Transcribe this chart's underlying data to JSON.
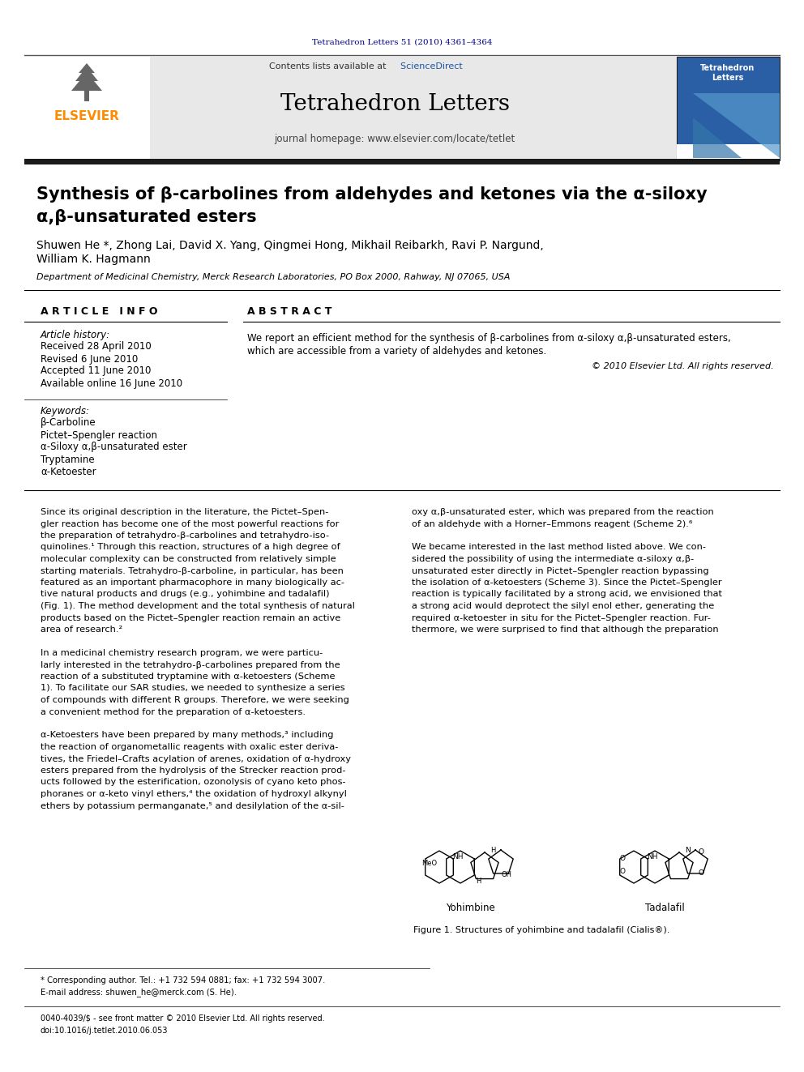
{
  "page_width": 9.92,
  "page_height": 13.23,
  "background_color": "#ffffff",
  "top_citation": "Tetrahedron Letters 51 (2010) 4361–4364",
  "top_citation_color": "#00008B",
  "journal_title": "Tetrahedron Letters",
  "journal_homepage": "journal homepage: www.elsevier.com/locate/tetlet",
  "contents_text": "Contents lists available at ",
  "science_direct": "ScienceDirect",
  "elsevier_text": "ELSEVIER",
  "elsevier_color": "#FF8C00",
  "header_bg": "#E8E8E8",
  "article_title_line1": "Synthesis of β-carbolines from aldehydes and ketones via the α-siloxy",
  "article_title_line2": "α,β-unsaturated esters",
  "authors": "Shuwen He *, Zhong Lai, David X. Yang, Qingmei Hong, Mikhail Reibarkh, Ravi P. Nargund,",
  "authors2": "William K. Hagmann",
  "affiliation": "Department of Medicinal Chemistry, Merck Research Laboratories, PO Box 2000, Rahway, NJ 07065, USA",
  "article_info_header": "A R T I C L E   I N F O",
  "abstract_header": "A B S T R A C T",
  "article_history_label": "Article history:",
  "received": "Received 28 April 2010",
  "revised": "Revised 6 June 2010",
  "accepted": "Accepted 11 June 2010",
  "available": "Available online 16 June 2010",
  "keywords_label": "Keywords:",
  "kw1": "β-Carboline",
  "kw2": "Pictet–Spengler reaction",
  "kw3": "α-Siloxy α,β-unsaturated ester",
  "kw4": "Tryptamine",
  "kw5": "α-Ketoester",
  "abstract_text_line1": "We report an efficient method for the synthesis of β-carbolines from α-siloxy α,β-unsaturated esters,",
  "abstract_text_line2": "which are accessible from a variety of aldehydes and ketones.",
  "copyright": "© 2010 Elsevier Ltd. All rights reserved.",
  "fig1_caption": "Figure 1. Structures of yohimbine and tadalafil (Cialis®).",
  "footnote1": "* Corresponding author. Tel.: +1 732 594 0881; fax: +1 732 594 3007.",
  "footnote2": "E-mail address: shuwen_he@merck.com (S. He).",
  "footnote3": "0040-4039/$ - see front matter © 2010 Elsevier Ltd. All rights reserved.",
  "footnote4": "doi:10.1016/j.tetlet.2010.06.053",
  "dark_bar_color": "#1a1a1a",
  "col1_lines": [
    "Since its original description in the literature, the Pictet–Spen-",
    "gler reaction has become one of the most powerful reactions for",
    "the preparation of tetrahydro-β-carbolines and tetrahydro-iso-",
    "quinolines.¹ Through this reaction, structures of a high degree of",
    "molecular complexity can be constructed from relatively simple",
    "starting materials. Tetrahydro-β-carboline, in particular, has been",
    "featured as an important pharmacophore in many biologically ac-",
    "tive natural products and drugs (e.g., yohimbine and tadalafil)",
    "(Fig. 1). The method development and the total synthesis of natural",
    "products based on the Pictet–Spengler reaction remain an active",
    "area of research.²",
    "",
    "In a medicinal chemistry research program, we were particu-",
    "larly interested in the tetrahydro-β-carbolines prepared from the",
    "reaction of a substituted tryptamine with α-ketoesters (Scheme",
    "1). To facilitate our SAR studies, we needed to synthesize a series",
    "of compounds with different R groups. Therefore, we were seeking",
    "a convenient method for the preparation of α-ketoesters.",
    "",
    "α-Ketoesters have been prepared by many methods,³ including",
    "the reaction of organometallic reagents with oxalic ester deriva-",
    "tives, the Friedel–Crafts acylation of arenes, oxidation of α-hydroxy",
    "esters prepared from the hydrolysis of the Strecker reaction prod-",
    "ucts followed by the esterification, ozonolysis of cyano keto phos-",
    "phoranes or α-keto vinyl ethers,⁴ the oxidation of hydroxyl alkynyl",
    "ethers by potassium permanganate,⁵ and desilylation of the α-sil-"
  ],
  "col2_lines": [
    "oxy α,β-unsaturated ester, which was prepared from the reaction",
    "of an aldehyde with a Horner–Emmons reagent (Scheme 2).⁶",
    "",
    "We became interested in the last method listed above. We con-",
    "sidered the possibility of using the intermediate α-siloxy α,β-",
    "unsaturated ester directly in Pictet–Spengler reaction bypassing",
    "the isolation of α-ketoesters (Scheme 3). Since the Pictet–Spengler",
    "reaction is typically facilitated by a strong acid, we envisioned that",
    "a strong acid would deprotect the silyl enol ether, generating the",
    "required α-ketoester in situ for the Pictet–Spengler reaction. Fur-",
    "thermore, we were surprised to find that although the preparation"
  ]
}
